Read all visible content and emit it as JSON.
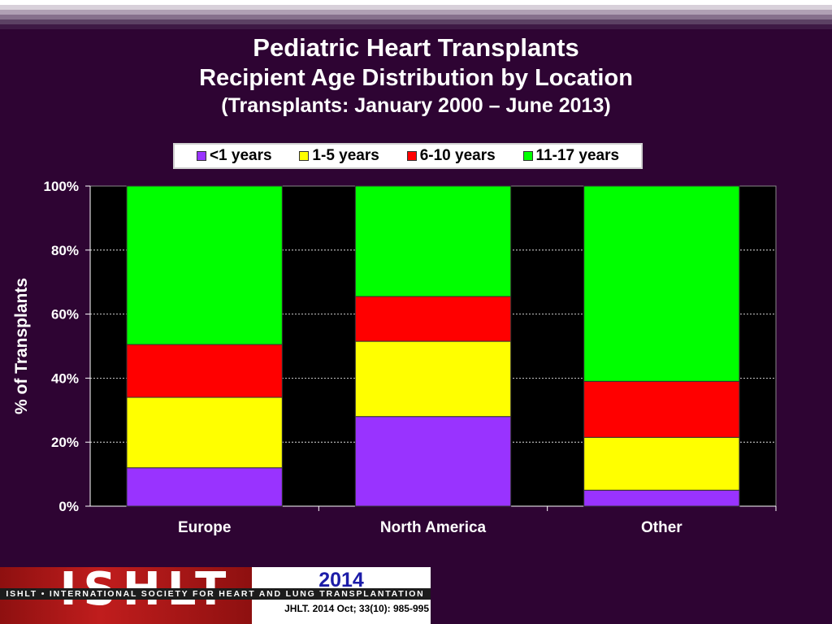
{
  "title": "Pediatric Heart Transplants",
  "subtitle": "Recipient Age Distribution by Location",
  "subtitle2": "(Transplants: January 2000 – June 2013)",
  "logo": {
    "letters": "ISHLT",
    "year": "2014",
    "org": "ISHLT • INTERNATIONAL SOCIETY FOR HEART AND LUNG TRANSPLANTATION",
    "citation": "JHLT. 2014 Oct; 33(10): 985-995"
  },
  "chart_data": {
    "type": "bar",
    "stacked": true,
    "categories": [
      "Europe",
      "North America",
      "Other"
    ],
    "ylabel": "% of Transplants",
    "ylim": [
      0,
      100
    ],
    "yticks": [
      "0%",
      "20%",
      "40%",
      "60%",
      "80%",
      "100%"
    ],
    "grid": true,
    "legend_position": "top",
    "series": [
      {
        "name": "<1 years",
        "color": "#9933ff",
        "values": [
          12,
          28,
          5
        ]
      },
      {
        "name": "1-5 years",
        "color": "#ffff00",
        "values": [
          22,
          23.5,
          16.5
        ]
      },
      {
        "name": "6-10 years",
        "color": "#ff0000",
        "values": [
          16.5,
          14,
          17.5
        ]
      },
      {
        "name": "11-17 years",
        "color": "#00ff00",
        "values": [
          49.5,
          34.5,
          61
        ]
      }
    ]
  }
}
